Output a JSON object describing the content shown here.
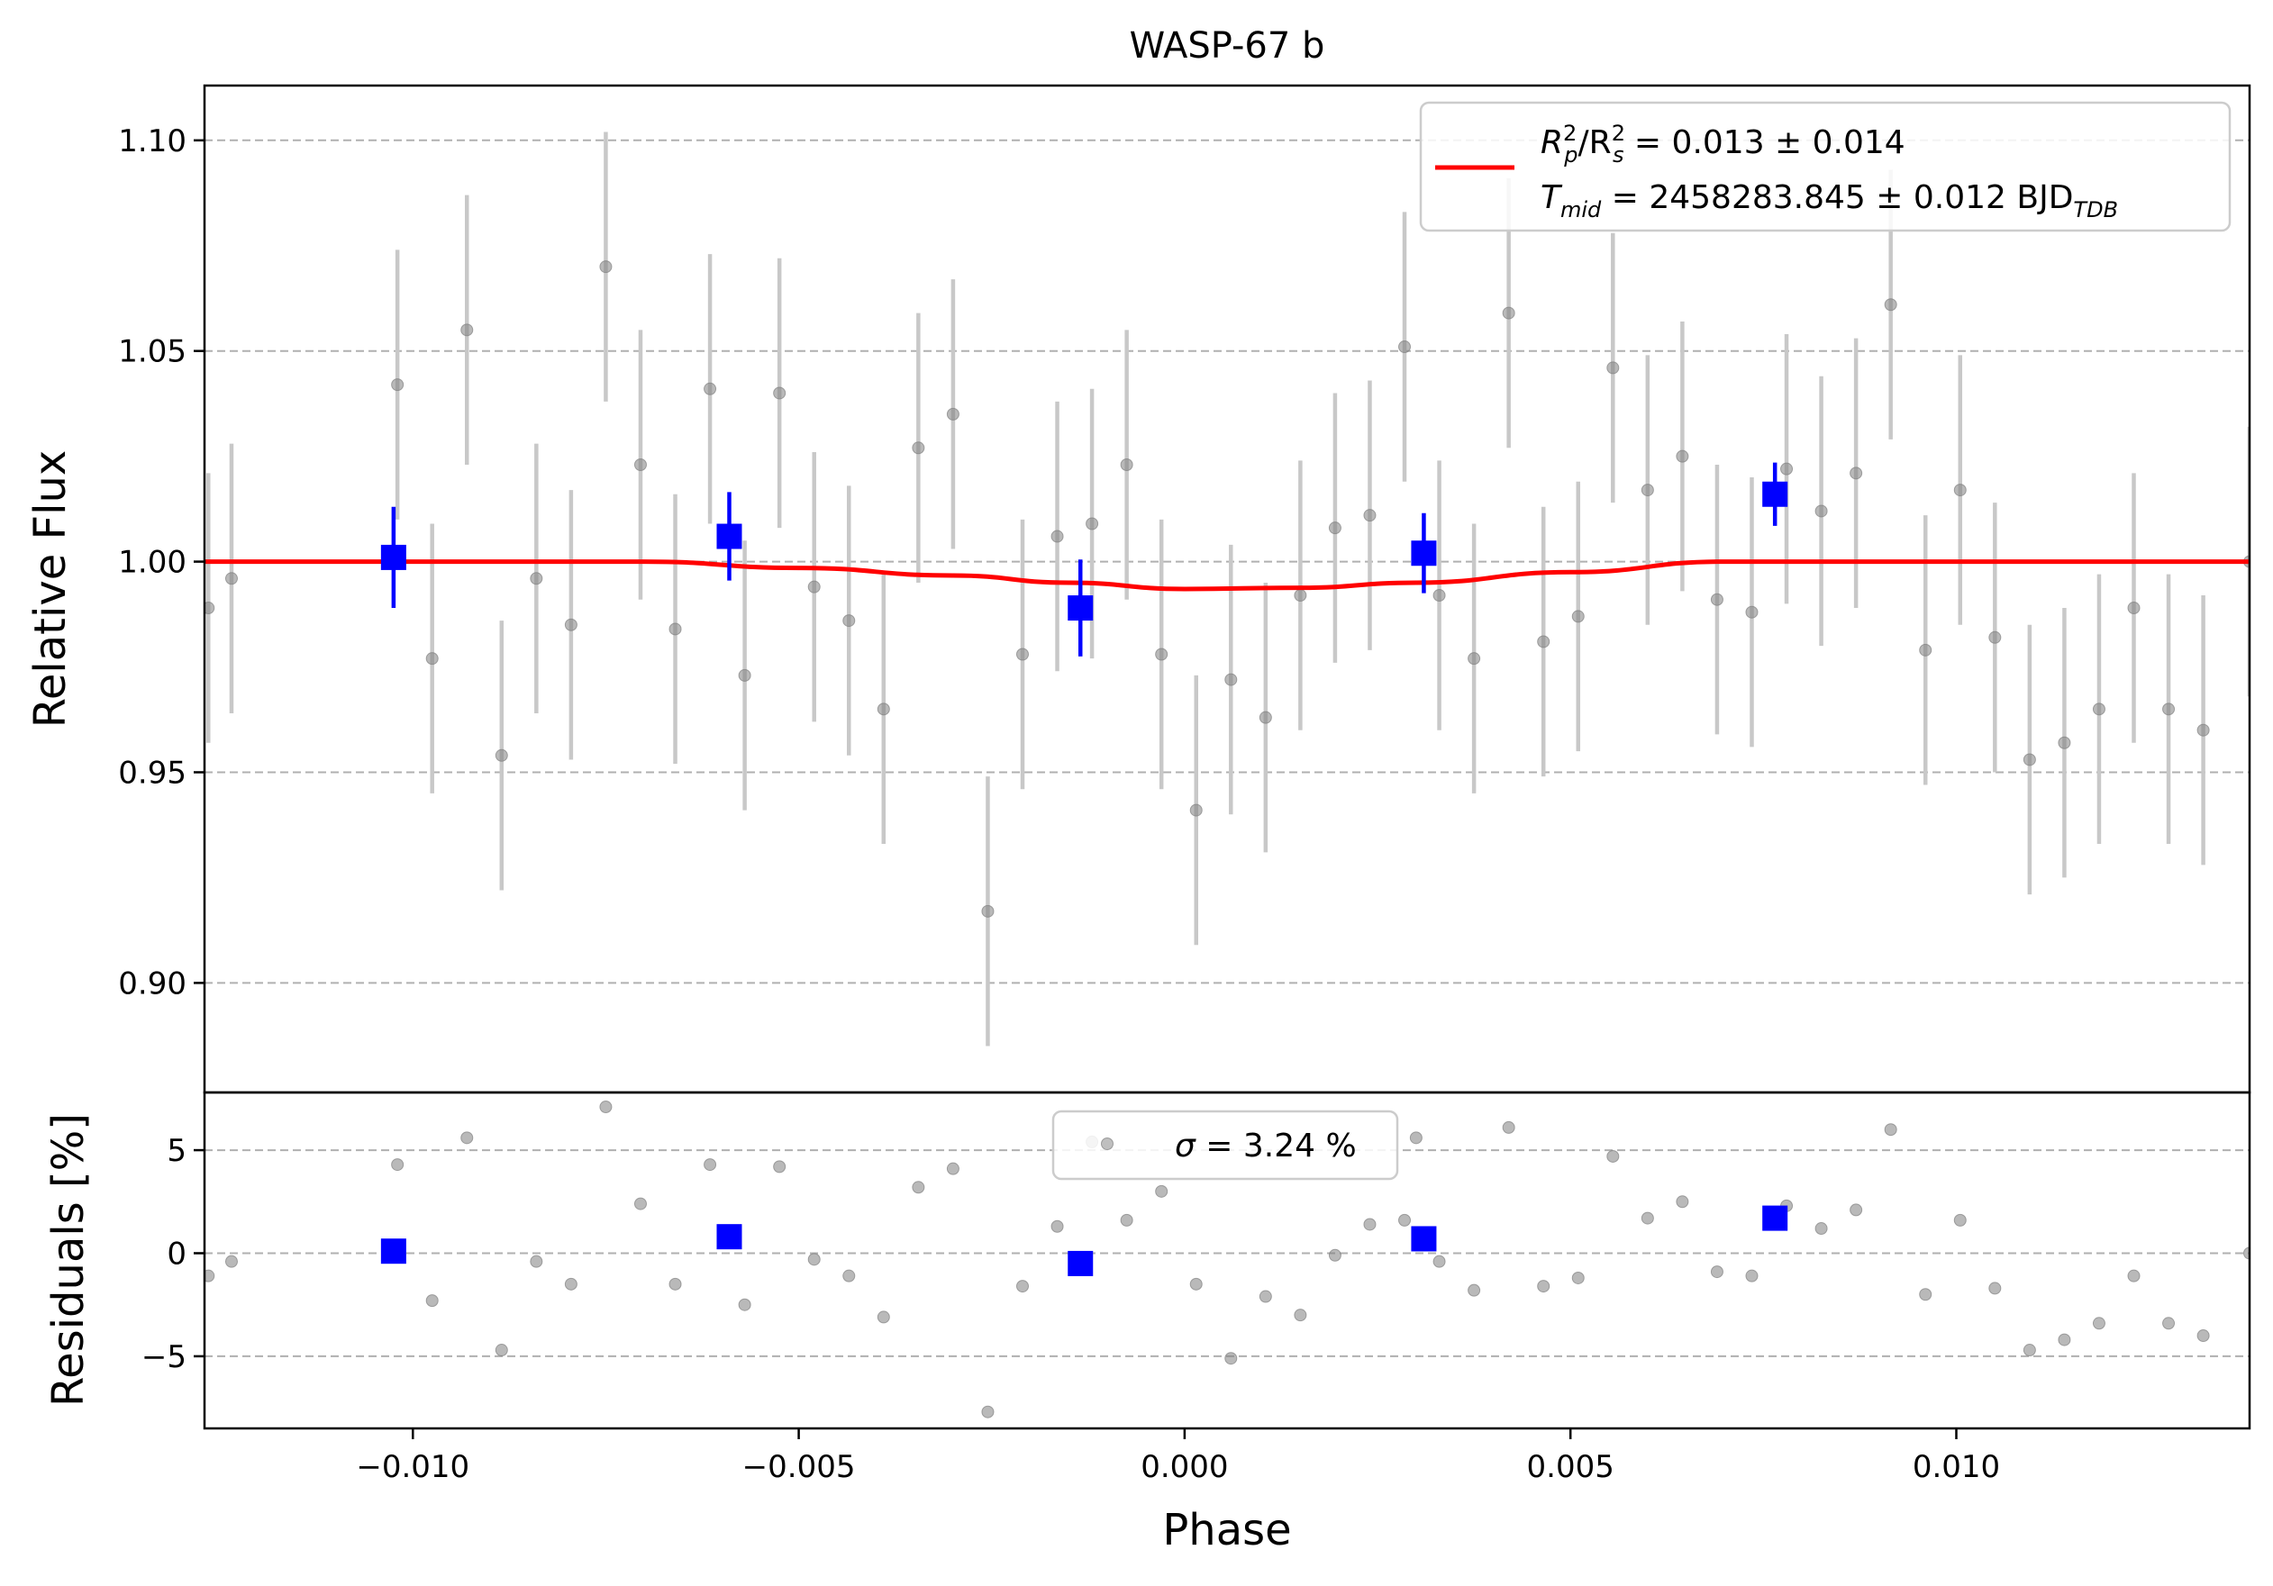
{
  "chart_data": [
    {
      "type": "scatter",
      "title": "WASP-67 b",
      "xlabel": "Phase",
      "ylabel": "Relative Flux",
      "xlim": [
        -0.0127,
        0.0138
      ],
      "ylim": [
        0.874,
        1.113
      ],
      "x_ticks": [
        "−0.010",
        "−0.005",
        "0.000",
        "0.005",
        "0.010"
      ],
      "x_tick_values": [
        -0.01,
        -0.005,
        0.0,
        0.005,
        0.01
      ],
      "y_ticks": [
        "0.90",
        "0.95",
        "1.00",
        "1.05",
        "1.10"
      ],
      "y_tick_values": [
        0.9,
        0.95,
        1.0,
        1.05,
        1.1
      ],
      "grid": "horizontal dashed",
      "legend_position": "upper right",
      "legend": {
        "line1_a": "R",
        "line1_sub_p": "p",
        "line1_sup_2": "2",
        "line1_slash": "/R",
        "line1_sub_s": "s",
        "line1_b": " = 0.013 ± 0.014",
        "line2_a": "T",
        "line2_sub": "mid",
        "line2_b": " = 2458283.845 ± 0.012 BJD",
        "line2_sub2": "TDB"
      },
      "colors": {
        "raw": "#808080",
        "raw_err": "#c8c8c8",
        "binned": "#0000ff",
        "model": "#ff0000",
        "grid": "#b0b0b0"
      },
      "model": {
        "x": [
          -0.0127,
          -0.007,
          -0.005,
          -0.003,
          -0.0015,
          0.0,
          0.0015,
          0.003,
          0.005,
          0.007,
          0.0138
        ],
        "y": [
          1.0,
          1.0,
          0.9985,
          0.9967,
          0.995,
          0.9935,
          0.9938,
          0.995,
          0.9975,
          1.0,
          1.0
        ]
      },
      "raw": [
        {
          "x": -0.01265,
          "y": 0.989,
          "err": 0.032
        },
        {
          "x": -0.01235,
          "y": 0.996,
          "err": 0.032
        },
        {
          "x": -0.0102,
          "y": 1.042,
          "err": 0.032
        },
        {
          "x": -0.00975,
          "y": 0.977,
          "err": 0.032
        },
        {
          "x": -0.0093,
          "y": 1.055,
          "err": 0.032
        },
        {
          "x": -0.00885,
          "y": 0.954,
          "err": 0.032
        },
        {
          "x": -0.0084,
          "y": 0.996,
          "err": 0.032
        },
        {
          "x": -0.00795,
          "y": 0.985,
          "err": 0.032
        },
        {
          "x": -0.0075,
          "y": 1.07,
          "err": 0.032
        },
        {
          "x": -0.00705,
          "y": 1.023,
          "err": 0.032
        },
        {
          "x": -0.0066,
          "y": 0.984,
          "err": 0.032
        },
        {
          "x": -0.00615,
          "y": 1.041,
          "err": 0.032
        },
        {
          "x": -0.0057,
          "y": 0.973,
          "err": 0.032
        },
        {
          "x": -0.00525,
          "y": 1.04,
          "err": 0.032
        },
        {
          "x": -0.0048,
          "y": 0.994,
          "err": 0.032
        },
        {
          "x": -0.00435,
          "y": 0.986,
          "err": 0.032
        },
        {
          "x": -0.0039,
          "y": 0.965,
          "err": 0.032
        },
        {
          "x": -0.00345,
          "y": 1.027,
          "err": 0.032
        },
        {
          "x": -0.003,
          "y": 1.035,
          "err": 0.032
        },
        {
          "x": -0.00255,
          "y": 0.917,
          "err": 0.032
        },
        {
          "x": -0.0021,
          "y": 0.978,
          "err": 0.032
        },
        {
          "x": -0.00165,
          "y": 1.006,
          "err": 0.032
        },
        {
          "x": -0.0012,
          "y": 1.009,
          "err": 0.032
        },
        {
          "x": -0.00075,
          "y": 1.023,
          "err": 0.032
        },
        {
          "x": -0.0003,
          "y": 0.978,
          "err": 0.032
        },
        {
          "x": 0.00015,
          "y": 0.941,
          "err": 0.032
        },
        {
          "x": 0.0006,
          "y": 0.972,
          "err": 0.032
        },
        {
          "x": 0.00105,
          "y": 0.963,
          "err": 0.032
        },
        {
          "x": 0.0015,
          "y": 0.992,
          "err": 0.032
        },
        {
          "x": 0.00195,
          "y": 1.008,
          "err": 0.032
        },
        {
          "x": 0.0024,
          "y": 1.011,
          "err": 0.032
        },
        {
          "x": 0.00285,
          "y": 1.051,
          "err": 0.032
        },
        {
          "x": 0.0033,
          "y": 0.992,
          "err": 0.032
        },
        {
          "x": 0.00375,
          "y": 0.977,
          "err": 0.032
        },
        {
          "x": 0.0042,
          "y": 1.059,
          "err": 0.032
        },
        {
          "x": 0.00465,
          "y": 0.981,
          "err": 0.032
        },
        {
          "x": 0.0051,
          "y": 0.987,
          "err": 0.032
        },
        {
          "x": 0.00555,
          "y": 1.046,
          "err": 0.032
        },
        {
          "x": 0.006,
          "y": 1.017,
          "err": 0.032
        },
        {
          "x": 0.00645,
          "y": 1.025,
          "err": 0.032
        },
        {
          "x": 0.0069,
          "y": 0.991,
          "err": 0.032
        },
        {
          "x": 0.00735,
          "y": 0.988,
          "err": 0.032
        },
        {
          "x": 0.0078,
          "y": 1.022,
          "err": 0.032
        },
        {
          "x": 0.00825,
          "y": 1.012,
          "err": 0.032
        },
        {
          "x": 0.0087,
          "y": 1.021,
          "err": 0.032
        },
        {
          "x": 0.00915,
          "y": 1.061,
          "err": 0.032
        },
        {
          "x": 0.0096,
          "y": 0.979,
          "err": 0.032
        },
        {
          "x": 0.01005,
          "y": 1.017,
          "err": 0.032
        },
        {
          "x": 0.0105,
          "y": 0.982,
          "err": 0.032
        },
        {
          "x": 0.01095,
          "y": 0.953,
          "err": 0.032
        },
        {
          "x": 0.0114,
          "y": 0.957,
          "err": 0.032
        },
        {
          "x": 0.01185,
          "y": 0.965,
          "err": 0.032
        },
        {
          "x": 0.0123,
          "y": 0.989,
          "err": 0.032
        },
        {
          "x": 0.01275,
          "y": 0.965,
          "err": 0.032
        },
        {
          "x": 0.0132,
          "y": 0.96,
          "err": 0.032
        },
        {
          "x": 0.0138,
          "y": 1.0,
          "err": 0.032
        }
      ],
      "binned": [
        {
          "x": -0.01025,
          "y": 1.001,
          "err": 0.012
        },
        {
          "x": -0.0059,
          "y": 1.006,
          "err": 0.0105
        },
        {
          "x": -0.00135,
          "y": 0.989,
          "err": 0.0115
        },
        {
          "x": 0.0031,
          "y": 1.002,
          "err": 0.0095
        },
        {
          "x": 0.00765,
          "y": 1.016,
          "err": 0.0075
        }
      ]
    },
    {
      "type": "scatter",
      "xlabel": "Phase",
      "ylabel": "Residuals [%]",
      "xlim": [
        -0.0127,
        0.0138
      ],
      "ylim": [
        -8.5,
        7.8
      ],
      "y_ticks": [
        "−5",
        "0",
        "5"
      ],
      "y_tick_values": [
        -5,
        0,
        5
      ],
      "grid": "horizontal dashed",
      "legend_position": "upper center",
      "legend": {
        "sigma_symbol": "σ",
        "sigma_text": " = 3.24 %"
      },
      "raw": [
        {
          "x": -0.01265,
          "y": -1.1
        },
        {
          "x": -0.01235,
          "y": -0.4
        },
        {
          "x": -0.0102,
          "y": 4.3
        },
        {
          "x": -0.00975,
          "y": -2.3
        },
        {
          "x": -0.0093,
          "y": 5.6
        },
        {
          "x": -0.00885,
          "y": -4.7
        },
        {
          "x": -0.0084,
          "y": -0.4
        },
        {
          "x": -0.00795,
          "y": -1.5
        },
        {
          "x": -0.0075,
          "y": 7.1
        },
        {
          "x": -0.00705,
          "y": 2.4
        },
        {
          "x": -0.0066,
          "y": -1.5
        },
        {
          "x": -0.00615,
          "y": 4.3
        },
        {
          "x": -0.0057,
          "y": -2.5
        },
        {
          "x": -0.00525,
          "y": 4.2
        },
        {
          "x": -0.0048,
          "y": -0.3
        },
        {
          "x": -0.00435,
          "y": -1.1
        },
        {
          "x": -0.0039,
          "y": -3.1
        },
        {
          "x": -0.00345,
          "y": 3.2
        },
        {
          "x": -0.003,
          "y": 4.1
        },
        {
          "x": -0.00255,
          "y": -7.7
        },
        {
          "x": -0.0021,
          "y": -1.6
        },
        {
          "x": -0.00165,
          "y": 1.3
        },
        {
          "x": -0.0012,
          "y": 5.4
        },
        {
          "x": -0.00075,
          "y": 1.6
        },
        {
          "x": -0.0003,
          "y": 3.0
        },
        {
          "x": 0.00015,
          "y": -1.5
        },
        {
          "x": 0.0006,
          "y": -5.1
        },
        {
          "x": 0.00105,
          "y": -2.1
        },
        {
          "x": 0.0015,
          "y": -3.0
        },
        {
          "x": 0.00195,
          "y": -0.1
        },
        {
          "x": 0.0024,
          "y": 1.4
        },
        {
          "x": 0.00285,
          "y": 1.6
        },
        {
          "x": 0.003,
          "y": 5.6
        },
        {
          "x": 0.0033,
          "y": -0.4
        },
        {
          "x": 0.00375,
          "y": -1.8
        },
        {
          "x": 0.0042,
          "y": 6.1
        },
        {
          "x": 0.00465,
          "y": -1.6
        },
        {
          "x": 0.0051,
          "y": -1.2
        },
        {
          "x": 0.00555,
          "y": 4.7
        },
        {
          "x": 0.006,
          "y": 1.7
        },
        {
          "x": 0.00645,
          "y": 2.5
        },
        {
          "x": 0.0069,
          "y": -0.9
        },
        {
          "x": 0.00735,
          "y": -1.1
        },
        {
          "x": 0.0078,
          "y": 2.3
        },
        {
          "x": 0.00825,
          "y": 1.2
        },
        {
          "x": 0.0087,
          "y": 2.1
        },
        {
          "x": 0.00915,
          "y": 6.0
        },
        {
          "x": 0.0096,
          "y": -2.0
        },
        {
          "x": 0.01005,
          "y": 1.6
        },
        {
          "x": 0.0105,
          "y": -1.7
        },
        {
          "x": 0.01095,
          "y": -4.7
        },
        {
          "x": 0.0114,
          "y": -4.2
        },
        {
          "x": 0.01185,
          "y": -3.4
        },
        {
          "x": 0.0123,
          "y": -1.1
        },
        {
          "x": 0.01275,
          "y": -3.4
        },
        {
          "x": 0.0132,
          "y": -4.0
        },
        {
          "x": 0.0138,
          "y": 0.0
        }
      ],
      "binned": [
        {
          "x": -0.01025,
          "y": 0.1
        },
        {
          "x": -0.0059,
          "y": 0.8
        },
        {
          "x": -0.00135,
          "y": -0.5
        },
        {
          "x": 0.0031,
          "y": 0.7
        },
        {
          "x": 0.00765,
          "y": 1.7
        }
      ]
    }
  ]
}
